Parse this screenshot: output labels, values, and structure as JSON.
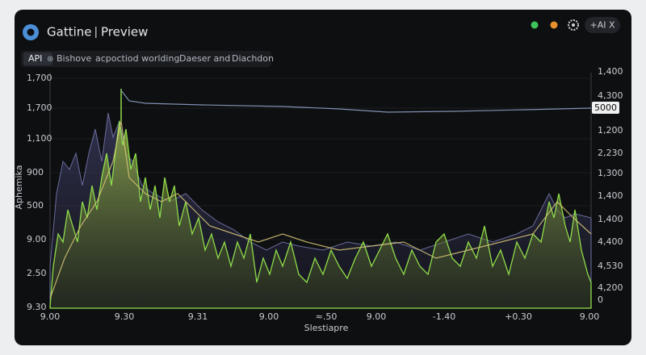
{
  "header": {
    "title": "Gattine",
    "subtitle": "Preview",
    "pill": "+AI X"
  },
  "toolbar": {
    "tag": "API",
    "items": [
      "Bishove",
      "acpoctiod worlding",
      "Daeser and",
      "Diachdon"
    ]
  },
  "chart": {
    "y_title": "Aphemika",
    "x_title": "Slestiapre",
    "badge": "5000",
    "left_labels": [
      "1,700",
      "1,700",
      "1,100",
      "900",
      "500",
      "9.00",
      "2.50",
      "9.30"
    ],
    "right_labels": [
      "1,400",
      "4,300",
      "1,200",
      "2,230",
      "1,300",
      "1,400",
      "1,400",
      "4,400",
      "4,530",
      "4,200",
      "0"
    ],
    "x_labels": [
      "9.00",
      "9.30",
      "9.31",
      "9.00",
      "≈.50",
      "9.00",
      "-1.40",
      "+0.30",
      "9.00"
    ]
  }
}
